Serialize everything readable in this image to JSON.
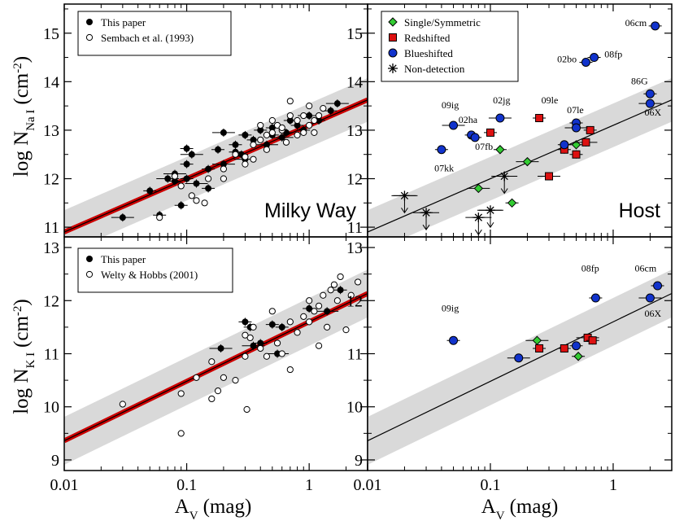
{
  "figure": {
    "y_label_top_main": "log N",
    "y_label_top_sub": "Na I",
    "y_label_top_unit": "(cm",
    "y_label_top_exp": "-2",
    "y_label_top_close": ")",
    "y_label_bot_main": "log N",
    "y_label_bot_sub": "K I",
    "y_label_bot_unit": "(cm",
    "y_label_bot_exp": "-2",
    "y_label_bot_close": ")",
    "x_label_main": "A",
    "x_label_sub": "V",
    "x_label_unit": "(mag)"
  },
  "colors": {
    "fit_line": "#cc0000",
    "band": "#d9d9d9",
    "green": "#33cc33",
    "red": "#dd1111",
    "blue": "#1133cc"
  },
  "chart_data": [
    {
      "id": "tl",
      "type": "scatter",
      "panel_label": "Milky Way",
      "xscale": "log",
      "xlim": [
        0.01,
        3
      ],
      "ylim": [
        10.8,
        15.6
      ],
      "yticks": [
        11,
        12,
        13,
        14,
        15
      ],
      "fit": {
        "slope": 1.1,
        "intercept": 13.1,
        "band": 0.45,
        "color": "red"
      },
      "legend": [
        "This paper",
        "Sembach et al. (1993)"
      ],
      "series": [
        {
          "name": "This paper",
          "marker": "filled",
          "points": [
            [
              0.03,
              11.2
            ],
            [
              0.06,
              11.25
            ],
            [
              0.05,
              11.75
            ],
            [
              0.07,
              12.0
            ],
            [
              0.08,
              11.95
            ],
            [
              0.09,
              11.45
            ],
            [
              0.08,
              12.1
            ],
            [
              0.1,
              12.3
            ],
            [
              0.1,
              12.0
            ],
            [
              0.12,
              11.9
            ],
            [
              0.15,
              11.8
            ],
            [
              0.1,
              12.62
            ],
            [
              0.11,
              12.5
            ],
            [
              0.15,
              12.2
            ],
            [
              0.18,
              12.6
            ],
            [
              0.2,
              12.95
            ],
            [
              0.25,
              12.7
            ],
            [
              0.3,
              12.9
            ],
            [
              0.3,
              12.4
            ],
            [
              0.35,
              12.8
            ],
            [
              0.4,
              13.0
            ],
            [
              0.45,
              12.7
            ],
            [
              0.5,
              12.9
            ],
            [
              0.5,
              13.05
            ],
            [
              0.6,
              12.85
            ],
            [
              0.7,
              13.2
            ],
            [
              0.8,
              13.1
            ],
            [
              1.0,
              13.3
            ],
            [
              1.2,
              13.2
            ],
            [
              1.5,
              13.4
            ],
            [
              1.7,
              13.55
            ],
            [
              0.25,
              12.55
            ],
            [
              0.28,
              12.5
            ],
            [
              0.2,
              12.3
            ],
            [
              0.65,
              12.95
            ],
            [
              0.9,
              13.0
            ]
          ]
        },
        {
          "name": "Sembach et al. (1993)",
          "marker": "open",
          "points": [
            [
              0.06,
              11.2
            ],
            [
              0.08,
              12.05
            ],
            [
              0.09,
              11.85
            ],
            [
              0.11,
              11.65
            ],
            [
              0.12,
              11.55
            ],
            [
              0.14,
              11.5
            ],
            [
              0.15,
              12.0
            ],
            [
              0.2,
              12.0
            ],
            [
              0.2,
              12.2
            ],
            [
              0.25,
              12.5
            ],
            [
              0.3,
              12.3
            ],
            [
              0.3,
              12.45
            ],
            [
              0.35,
              12.7
            ],
            [
              0.4,
              12.8
            ],
            [
              0.45,
              12.6
            ],
            [
              0.5,
              12.95
            ],
            [
              0.55,
              13.1
            ],
            [
              0.6,
              13.0
            ],
            [
              0.7,
              13.3
            ],
            [
              0.7,
              13.6
            ],
            [
              0.8,
              13.2
            ],
            [
              0.9,
              12.95
            ],
            [
              0.9,
              13.3
            ],
            [
              1.0,
              13.5
            ],
            [
              1.1,
              13.2
            ],
            [
              1.2,
              13.3
            ],
            [
              1.3,
              13.45
            ],
            [
              0.4,
              13.1
            ],
            [
              0.5,
              13.2
            ],
            [
              0.6,
              13.05
            ],
            [
              0.65,
              12.75
            ],
            [
              0.8,
              12.9
            ],
            [
              0.35,
              12.4
            ],
            [
              0.45,
              12.9
            ],
            [
              1.0,
              13.1
            ],
            [
              1.1,
              12.95
            ]
          ]
        }
      ]
    },
    {
      "id": "tr",
      "type": "scatter",
      "panel_label": "Host",
      "xscale": "log",
      "xlim": [
        0.01,
        3
      ],
      "ylim": [
        10.8,
        15.6
      ],
      "yticks": [
        11,
        12,
        13,
        14,
        15
      ],
      "fit": {
        "slope": 1.1,
        "intercept": 13.1,
        "band": 0.45,
        "color": "black"
      },
      "legend": [
        "Single/Symmetric",
        "Redshifted",
        "Blueshifted",
        "Non-detection"
      ],
      "series": [
        {
          "name": "Single/Symmetric",
          "marker": "diamond",
          "points": [
            [
              0.08,
              11.8
            ],
            [
              0.12,
              12.6
            ],
            [
              0.15,
              11.5
            ],
            [
              0.2,
              12.35
            ],
            [
              0.5,
              12.7
            ]
          ]
        },
        {
          "name": "Redshifted",
          "marker": "square",
          "points": [
            [
              0.1,
              12.95
            ],
            [
              0.25,
              13.25
            ],
            [
              0.3,
              12.05
            ],
            [
              0.4,
              12.6
            ],
            [
              0.5,
              12.5
            ],
            [
              0.6,
              12.75
            ],
            [
              0.65,
              13.0
            ]
          ]
        },
        {
          "name": "Blueshifted",
          "marker": "circle",
          "points": [
            [
              0.04,
              12.6
            ],
            [
              0.05,
              13.1
            ],
            [
              0.07,
              12.9
            ],
            [
              0.075,
              12.85
            ],
            [
              0.12,
              13.25
            ],
            [
              0.4,
              12.7
            ],
            [
              0.5,
              13.15
            ],
            [
              0.5,
              13.05
            ],
            [
              0.6,
              14.4
            ],
            [
              0.7,
              14.5
            ],
            [
              2.0,
              13.55
            ],
            [
              2.0,
              13.75
            ],
            [
              2.2,
              15.15
            ]
          ]
        },
        {
          "name": "Non-detection",
          "marker": "star",
          "points": [
            [
              0.02,
              11.65
            ],
            [
              0.03,
              11.3
            ],
            [
              0.08,
              11.2
            ],
            [
              0.1,
              11.35
            ],
            [
              0.13,
              12.05
            ]
          ]
        }
      ],
      "labels": [
        {
          "text": "06cm",
          "x": 1.25,
          "y": 15.15
        },
        {
          "text": "02bo",
          "x": 0.35,
          "y": 14.4
        },
        {
          "text": "08fp",
          "x": 0.85,
          "y": 14.5
        },
        {
          "text": "09ig",
          "x": 0.04,
          "y": 13.45
        },
        {
          "text": "02ha",
          "x": 0.055,
          "y": 13.15
        },
        {
          "text": "07fb",
          "x": 0.075,
          "y": 12.6
        },
        {
          "text": "07kk",
          "x": 0.035,
          "y": 12.15
        },
        {
          "text": "02jg",
          "x": 0.105,
          "y": 13.55
        },
        {
          "text": "09le",
          "x": 0.26,
          "y": 13.55
        },
        {
          "text": "07le",
          "x": 0.42,
          "y": 13.35
        },
        {
          "text": "86G",
          "x": 1.4,
          "y": 13.95
        },
        {
          "text": "06X",
          "x": 1.8,
          "y": 13.3
        }
      ]
    },
    {
      "id": "bl",
      "type": "scatter",
      "xscale": "log",
      "xlim": [
        0.01,
        3
      ],
      "ylim": [
        8.8,
        13.2
      ],
      "yticks": [
        9,
        10,
        11,
        12,
        13
      ],
      "fit": {
        "slope": 1.12,
        "intercept": 11.6,
        "band": 0.45,
        "color": "red"
      },
      "legend": [
        "This paper",
        "Welty & Hobbs (2001)"
      ],
      "series": [
        {
          "name": "This paper",
          "marker": "filled",
          "points": [
            [
              0.19,
              11.1
            ],
            [
              0.3,
              11.6
            ],
            [
              0.33,
              11.5
            ],
            [
              0.35,
              11.15
            ],
            [
              0.4,
              11.2
            ],
            [
              0.5,
              11.55
            ],
            [
              0.55,
              11.0
            ],
            [
              0.6,
              11.5
            ],
            [
              1.0,
              11.85
            ],
            [
              1.4,
              11.8
            ],
            [
              1.8,
              12.2
            ]
          ]
        },
        {
          "name": "Welty & Hobbs (2001)",
          "marker": "open",
          "points": [
            [
              0.03,
              10.05
            ],
            [
              0.09,
              10.25
            ],
            [
              0.09,
              9.5
            ],
            [
              0.12,
              10.55
            ],
            [
              0.16,
              10.85
            ],
            [
              0.16,
              10.15
            ],
            [
              0.18,
              10.3
            ],
            [
              0.2,
              10.55
            ],
            [
              0.25,
              10.5
            ],
            [
              0.3,
              10.95
            ],
            [
              0.31,
              9.95
            ],
            [
              0.33,
              11.3
            ],
            [
              0.35,
              11.5
            ],
            [
              0.4,
              11.1
            ],
            [
              0.45,
              10.95
            ],
            [
              0.5,
              11.8
            ],
            [
              0.55,
              11.2
            ],
            [
              0.6,
              11.0
            ],
            [
              0.7,
              10.7
            ],
            [
              0.8,
              11.4
            ],
            [
              0.9,
              11.7
            ],
            [
              1.0,
              11.6
            ],
            [
              1.0,
              12.0
            ],
            [
              1.1,
              11.8
            ],
            [
              1.2,
              11.9
            ],
            [
              1.3,
              12.1
            ],
            [
              1.4,
              11.5
            ],
            [
              1.5,
              12.2
            ],
            [
              1.6,
              12.3
            ],
            [
              1.7,
              12.0
            ],
            [
              1.8,
              12.45
            ],
            [
              2.0,
              11.45
            ],
            [
              2.2,
              12.1
            ],
            [
              2.5,
              12.35
            ],
            [
              1.2,
              11.15
            ],
            [
              0.3,
              11.35
            ],
            [
              0.7,
              11.6
            ]
          ]
        }
      ]
    },
    {
      "id": "br",
      "type": "scatter",
      "xscale": "log",
      "xlim": [
        0.01,
        3
      ],
      "ylim": [
        8.8,
        13.2
      ],
      "yticks": [
        9,
        10,
        11,
        12,
        13
      ],
      "fit": {
        "slope": 1.12,
        "intercept": 11.6,
        "band": 0.45,
        "color": "black"
      },
      "series": [
        {
          "name": "Single/Symmetric",
          "marker": "diamond",
          "points": [
            [
              0.24,
              11.25
            ],
            [
              0.52,
              10.95
            ]
          ]
        },
        {
          "name": "Redshifted",
          "marker": "square",
          "points": [
            [
              0.25,
              11.1
            ],
            [
              0.4,
              11.1
            ],
            [
              0.62,
              11.3
            ],
            [
              0.68,
              11.25
            ]
          ]
        },
        {
          "name": "Blueshifted",
          "marker": "circle",
          "points": [
            [
              0.05,
              11.25
            ],
            [
              0.17,
              10.92
            ],
            [
              0.5,
              11.15
            ],
            [
              0.72,
              12.05
            ],
            [
              2.0,
              12.05
            ],
            [
              2.3,
              12.28
            ]
          ]
        }
      ],
      "labels": [
        {
          "text": "09ig",
          "x": 0.04,
          "y": 11.8
        },
        {
          "text": "08fp",
          "x": 0.55,
          "y": 12.55
        },
        {
          "text": "06cm",
          "x": 1.5,
          "y": 12.55
        },
        {
          "text": "06X",
          "x": 1.8,
          "y": 11.7
        }
      ]
    }
  ],
  "x_ticks": [
    {
      "v": 0.01,
      "label": "0.01"
    },
    {
      "v": 0.1,
      "label": "0.1"
    },
    {
      "v": 1,
      "label": "1"
    }
  ]
}
